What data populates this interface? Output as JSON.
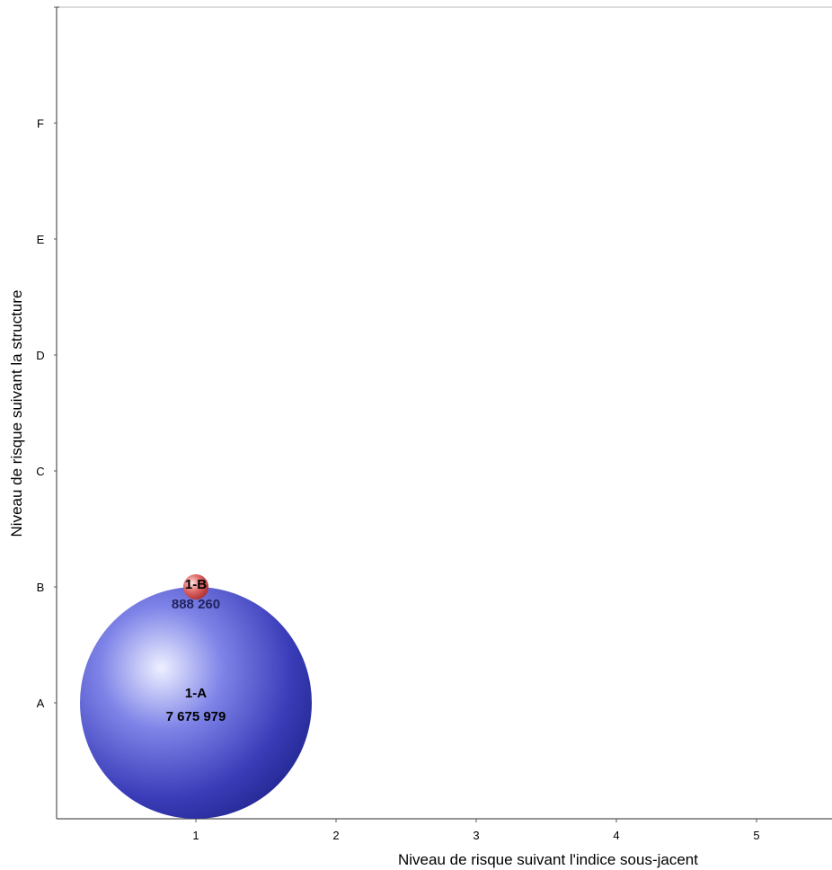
{
  "chart_data": {
    "type": "bubble",
    "xlabel": "Niveau de risque suivant l'indice sous-jacent",
    "ylabel": "Niveau de risque suivant la structure",
    "x_ticks": [
      "1",
      "2",
      "3",
      "4",
      "5"
    ],
    "y_categories": [
      "A",
      "B",
      "C",
      "D",
      "E",
      "F"
    ],
    "xlim": [
      0.7,
      6.3
    ],
    "ylim": [
      "A",
      "F"
    ],
    "grid": false,
    "points": [
      {
        "label": "1-A",
        "x": 1,
        "y": "A",
        "value": "7 675 979",
        "size": 7675979,
        "color": "#3a3cb8"
      },
      {
        "label": "1-B",
        "x": 1,
        "y": "B",
        "value": "888 260",
        "size": 888260,
        "color": "#d94a4a"
      }
    ]
  }
}
